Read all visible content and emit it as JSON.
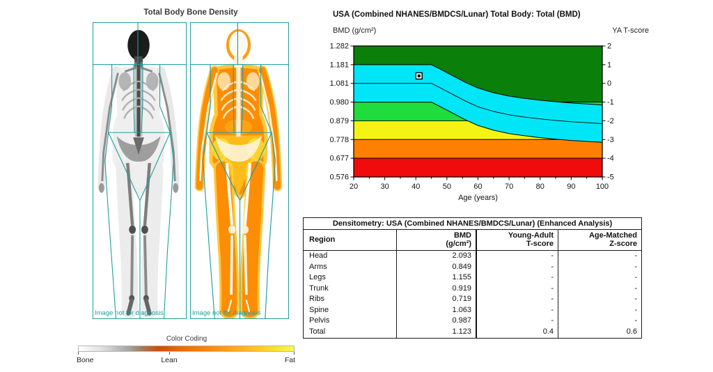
{
  "scan_panel": {
    "title": "Total Body Bone Density",
    "watermark": "Image not for diagnosis",
    "roi_color": "#1d9e9e",
    "legend": {
      "title": "Color Coding",
      "labels": [
        "Bone",
        "Lean",
        "Fat"
      ],
      "lean_tick_position": 0.42,
      "gradient": [
        "#ffffff 0%",
        "#e3e3e3 10%",
        "#ababab 22%",
        "#a07a55 30%",
        "#c84e10 37%",
        "#e96a06 47%",
        "#f8860c 60%",
        "#ffb71f 78%",
        "#ffe42e 92%",
        "#fbf74d 100%"
      ]
    }
  },
  "chart": {
    "title": "USA (Combined NHANES/BMDCS/Lunar) Total Body: Total (BMD)",
    "left_axis_caption": "BMD (g/cm²)",
    "right_axis_caption": "YA T-score"
  },
  "chart_data": {
    "type": "area",
    "title": "USA (Combined NHANES/BMDCS/Lunar) Total Body: Total (BMD)",
    "xlabel": "Age (years)",
    "x_range": [
      20,
      100
    ],
    "x_ticks": [
      20,
      30,
      40,
      50,
      60,
      70,
      80,
      90,
      100
    ],
    "x_minor_tick_step": 5,
    "t_range": [
      2,
      -5
    ],
    "tscore_ticks": [
      2,
      1,
      0,
      -1,
      -2,
      -3,
      -4,
      -5
    ],
    "bmd_tick_labels": [
      "1.282",
      "1.181",
      "1.081",
      "0.980",
      "0.879",
      "0.778",
      "0.677",
      "0.576"
    ],
    "background_bands": [
      {
        "name": "dark-green",
        "color": "#0a7f0a",
        "t_top": 2,
        "t_bottom": -1
      },
      {
        "name": "bright-green",
        "color": "#1fdd3c",
        "t_top": -1,
        "t_bottom": -2
      },
      {
        "name": "yellow",
        "color": "#f4f414",
        "t_top": -2,
        "t_bottom": -3
      },
      {
        "name": "orange",
        "color": "#ff8000",
        "t_top": -3,
        "t_bottom": -4
      },
      {
        "name": "red",
        "color": "#f00c0c",
        "t_top": -4,
        "t_bottom": -5
      }
    ],
    "reference_band": {
      "color": "#00e6f6",
      "half_width_t": 1.0,
      "mean_curve": {
        "x": [
          20,
          45,
          48,
          52,
          56,
          60,
          65,
          70,
          75,
          80,
          85,
          90,
          95,
          100
        ],
        "t": [
          0,
          0,
          -0.25,
          -0.6,
          -0.95,
          -1.25,
          -1.5,
          -1.68,
          -1.8,
          -1.9,
          -1.98,
          -2.05,
          -2.1,
          -2.15
        ]
      }
    },
    "data_point": {
      "age": 41,
      "t_score": 0.4,
      "bmd": 1.123
    }
  },
  "table": {
    "title": "Densitometry: USA (Combined NHANES/BMDCS/Lunar) (Enhanced Analysis)",
    "columns": [
      {
        "line1": "Region",
        "line2": ""
      },
      {
        "line1": "BMD",
        "line2": "(g/cm²)"
      },
      {
        "line1": "Young-Adult",
        "line2": "T-score"
      },
      {
        "line1": "Age-Matched",
        "line2": "Z-score"
      }
    ],
    "rows": [
      {
        "region": "Head",
        "bmd": "2.093",
        "t": "-",
        "z": "-"
      },
      {
        "region": "Arms",
        "bmd": "0.849",
        "t": "-",
        "z": "-"
      },
      {
        "region": "Legs",
        "bmd": "1.155",
        "t": "-",
        "z": "-"
      },
      {
        "region": "Trunk",
        "bmd": "0.919",
        "t": "-",
        "z": "-"
      },
      {
        "region": "Ribs",
        "bmd": "0.719",
        "t": "-",
        "z": "-"
      },
      {
        "region": "Spine",
        "bmd": "1.063",
        "t": "-",
        "z": "-"
      },
      {
        "region": "Pelvis",
        "bmd": "0.987",
        "t": "-",
        "z": "-"
      },
      {
        "region": "Total",
        "bmd": "1.123",
        "t": "0.4",
        "z": "0.6"
      }
    ]
  }
}
